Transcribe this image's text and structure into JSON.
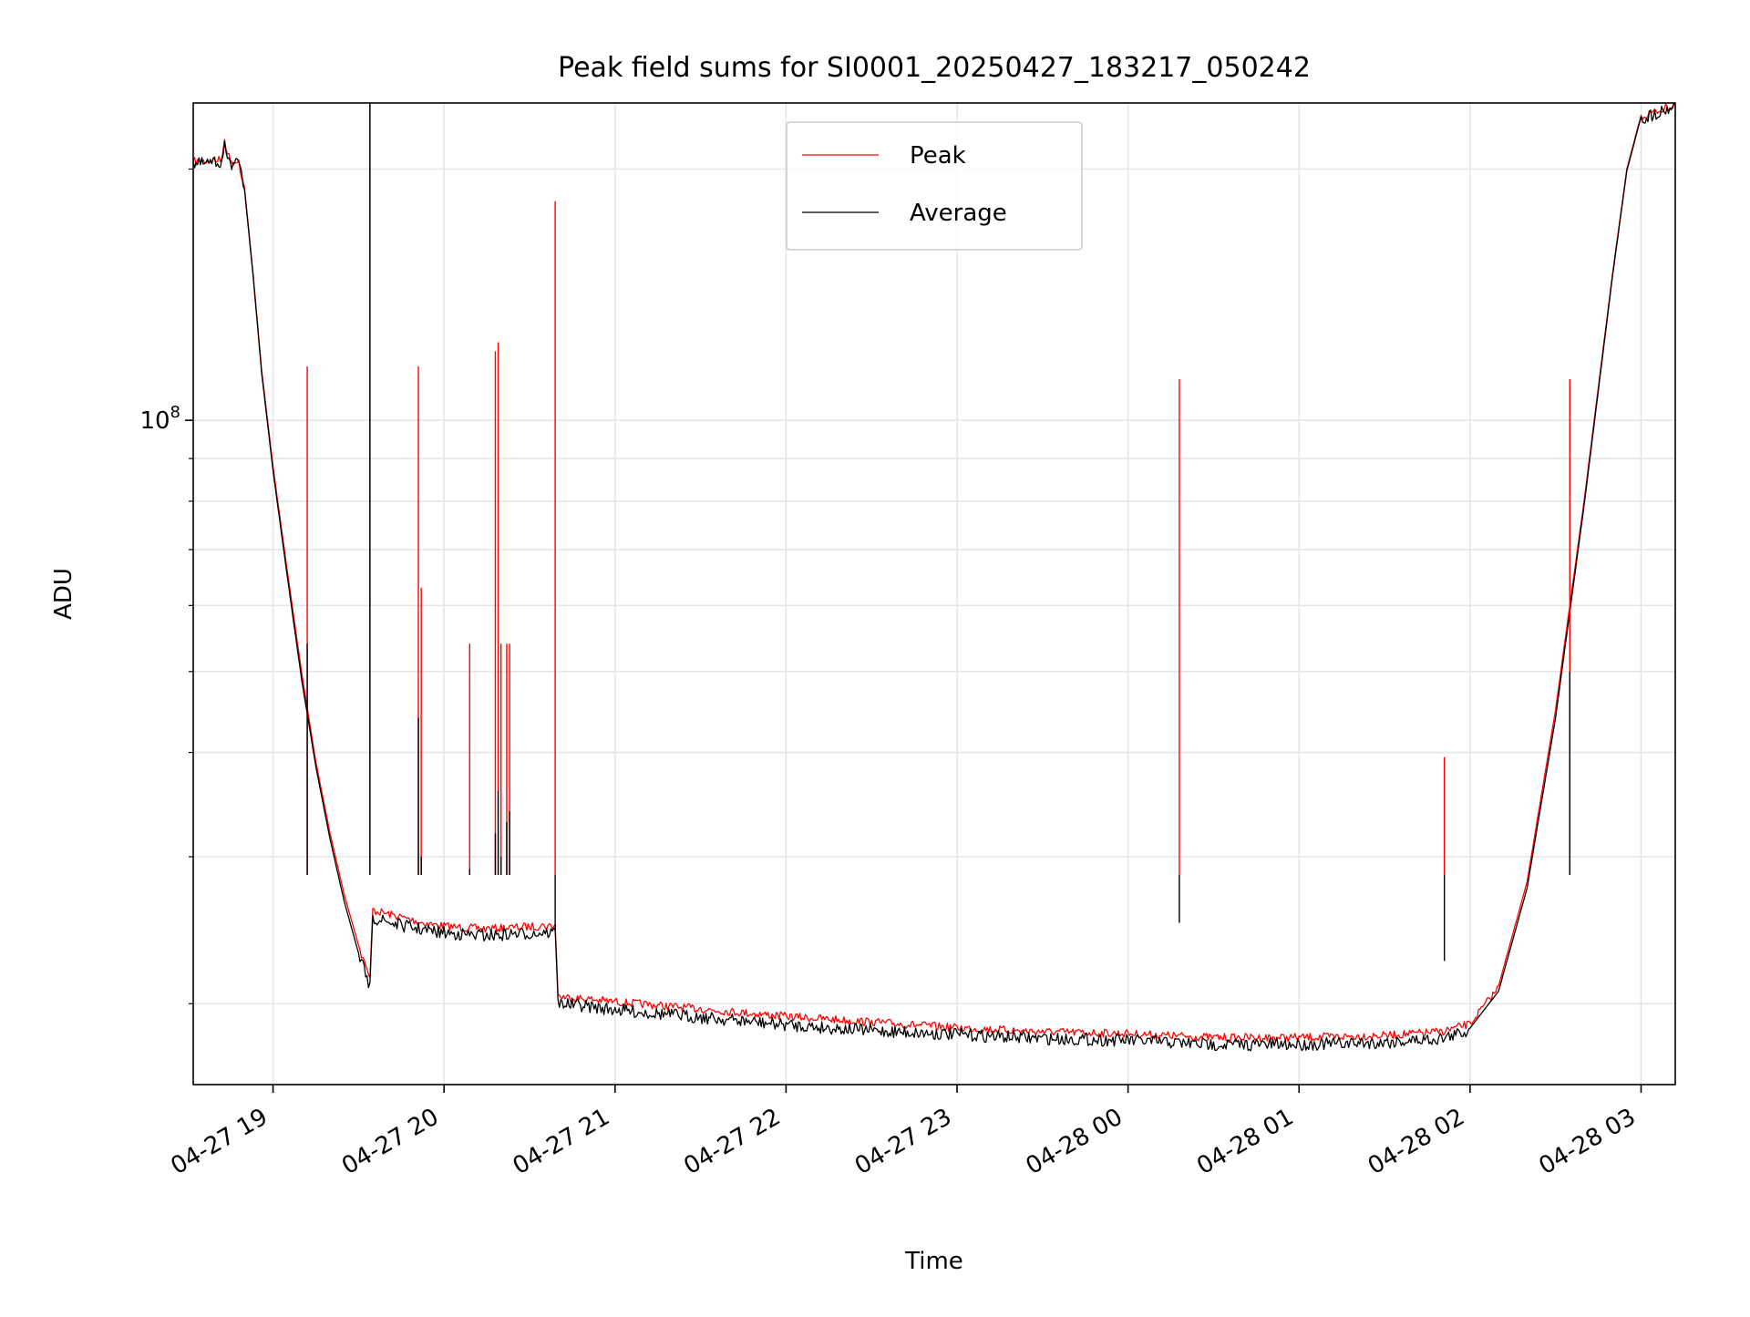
{
  "chart_data": {
    "type": "line",
    "title": "Peak field sums for SI0001_20250427_183217_050242",
    "xlabel": "Time",
    "ylabel": "ADU",
    "y_scale": "log",
    "grid": true,
    "legend_position": "top-center",
    "xlim": [
      "2025-04-27 18:32",
      "2025-04-28 03:12"
    ],
    "ylim": [
      16000000,
      240000000
    ],
    "x_ticks": [
      {
        "value": "2025-04-27 19:00",
        "label": "04-27 19"
      },
      {
        "value": "2025-04-27 20:00",
        "label": "04-27 20"
      },
      {
        "value": "2025-04-27 21:00",
        "label": "04-27 21"
      },
      {
        "value": "2025-04-27 22:00",
        "label": "04-27 22"
      },
      {
        "value": "2025-04-27 23:00",
        "label": "04-27 23"
      },
      {
        "value": "2025-04-28 00:00",
        "label": "04-28 00"
      },
      {
        "value": "2025-04-28 01:00",
        "label": "04-28 01"
      },
      {
        "value": "2025-04-28 02:00",
        "label": "04-28 02"
      },
      {
        "value": "2025-04-28 03:00",
        "label": "04-28 03"
      }
    ],
    "y_major_ticks": [
      {
        "value": 100000000,
        "base": "10",
        "exponent": "8"
      }
    ],
    "y_minor_ticks": [
      20000000,
      30000000,
      40000000,
      50000000,
      60000000,
      70000000,
      80000000,
      90000000,
      200000000
    ],
    "series": [
      {
        "name": "Peak",
        "color": "#ff0000",
        "points": [
          [
            "2025-04-27 18:32",
            205000000
          ],
          [
            "2025-04-27 18:42",
            206000000
          ],
          [
            "2025-04-27 18:43",
            217000000
          ],
          [
            "2025-04-27 18:45",
            205000000
          ],
          [
            "2025-04-27 18:48",
            205000000
          ],
          [
            "2025-04-27 18:50",
            190000000
          ],
          [
            "2025-04-27 18:53",
            150000000
          ],
          [
            "2025-04-27 18:56",
            115000000
          ],
          [
            "2025-04-27 19:00",
            88000000
          ],
          [
            "2025-04-27 19:05",
            66000000
          ],
          [
            "2025-04-27 19:10",
            50000000
          ],
          [
            "2025-04-27 19:15",
            39000000
          ],
          [
            "2025-04-27 19:20",
            32000000
          ],
          [
            "2025-04-27 19:25",
            27000000
          ],
          [
            "2025-04-27 19:30",
            23500000
          ],
          [
            "2025-04-27 19:33",
            22000000
          ],
          [
            "2025-04-27 19:34",
            21500000
          ],
          [
            "2025-04-27 19:35",
            26000000
          ],
          [
            "2025-04-27 19:45",
            25500000
          ],
          [
            "2025-04-27 19:55",
            25000000
          ],
          [
            "2025-04-27 20:05",
            24800000
          ],
          [
            "2025-04-27 20:15",
            24700000
          ],
          [
            "2025-04-27 20:25",
            24800000
          ],
          [
            "2025-04-27 20:35",
            24900000
          ],
          [
            "2025-04-27 20:39",
            24900000
          ],
          [
            "2025-04-27 20:40",
            20500000
          ],
          [
            "2025-04-27 21:00",
            20200000
          ],
          [
            "2025-04-27 21:30",
            19800000
          ],
          [
            "2025-04-27 22:00",
            19400000
          ],
          [
            "2025-04-27 22:30",
            19100000
          ],
          [
            "2025-04-27 23:00",
            18800000
          ],
          [
            "2025-04-27 23:30",
            18600000
          ],
          [
            "2025-04-28 00:00",
            18500000
          ],
          [
            "2025-04-28 00:30",
            18300000
          ],
          [
            "2025-04-28 01:00",
            18300000
          ],
          [
            "2025-04-28 01:30",
            18400000
          ],
          [
            "2025-04-28 01:50",
            18600000
          ],
          [
            "2025-04-28 02:00",
            19000000
          ],
          [
            "2025-04-28 02:10",
            21000000
          ],
          [
            "2025-04-28 02:20",
            28000000
          ],
          [
            "2025-04-28 02:30",
            45000000
          ],
          [
            "2025-04-28 02:40",
            80000000
          ],
          [
            "2025-04-28 02:50",
            150000000
          ],
          [
            "2025-04-28 02:55",
            200000000
          ],
          [
            "2025-04-28 03:00",
            232000000
          ],
          [
            "2025-04-28 03:12",
            240000000
          ]
        ]
      },
      {
        "name": "Average",
        "color": "#000000",
        "points": [
          [
            "2025-04-27 18:32",
            204000000
          ],
          [
            "2025-04-27 18:42",
            205000000
          ],
          [
            "2025-04-27 18:43",
            216000000
          ],
          [
            "2025-04-27 18:45",
            204000000
          ],
          [
            "2025-04-27 18:48",
            204000000
          ],
          [
            "2025-04-27 18:50",
            189000000
          ],
          [
            "2025-04-27 18:53",
            149000000
          ],
          [
            "2025-04-27 18:56",
            114000000
          ],
          [
            "2025-04-27 19:00",
            87000000
          ],
          [
            "2025-04-27 19:05",
            65000000
          ],
          [
            "2025-04-27 19:10",
            49000000
          ],
          [
            "2025-04-27 19:15",
            38500000
          ],
          [
            "2025-04-27 19:20",
            31500000
          ],
          [
            "2025-04-27 19:25",
            26500000
          ],
          [
            "2025-04-27 19:30",
            23000000
          ],
          [
            "2025-04-27 19:33",
            21600000
          ],
          [
            "2025-04-27 19:34",
            21200000
          ],
          [
            "2025-04-27 19:35",
            25500000
          ],
          [
            "2025-04-27 19:45",
            25000000
          ],
          [
            "2025-04-27 19:55",
            24600000
          ],
          [
            "2025-04-27 20:05",
            24400000
          ],
          [
            "2025-04-27 20:15",
            24300000
          ],
          [
            "2025-04-27 20:25",
            24400000
          ],
          [
            "2025-04-27 20:35",
            24500000
          ],
          [
            "2025-04-27 20:39",
            24500000
          ],
          [
            "2025-04-27 20:40",
            20200000
          ],
          [
            "2025-04-27 21:00",
            19800000
          ],
          [
            "2025-04-27 21:30",
            19400000
          ],
          [
            "2025-04-27 22:00",
            19000000
          ],
          [
            "2025-04-27 22:30",
            18700000
          ],
          [
            "2025-04-27 23:00",
            18500000
          ],
          [
            "2025-04-27 23:30",
            18300000
          ],
          [
            "2025-04-28 00:00",
            18200000
          ],
          [
            "2025-04-28 00:30",
            18000000
          ],
          [
            "2025-04-28 01:00",
            18000000
          ],
          [
            "2025-04-28 01:30",
            18100000
          ],
          [
            "2025-04-28 01:50",
            18300000
          ],
          [
            "2025-04-28 02:00",
            18700000
          ],
          [
            "2025-04-28 02:10",
            20700000
          ],
          [
            "2025-04-28 02:20",
            27500000
          ],
          [
            "2025-04-28 02:30",
            44000000
          ],
          [
            "2025-04-28 02:40",
            79000000
          ],
          [
            "2025-04-28 02:50",
            149000000
          ],
          [
            "2025-04-28 02:55",
            199000000
          ],
          [
            "2025-04-28 03:00",
            231000000
          ],
          [
            "2025-04-28 03:12",
            240000000
          ]
        ]
      }
    ],
    "spikes": [
      {
        "time": "2025-04-27 19:12",
        "peak": 116000000,
        "average": 54000000
      },
      {
        "time": "2025-04-27 19:34",
        "peak": 240000000,
        "average": 240000000
      },
      {
        "time": "2025-04-27 19:51",
        "peak": 116000000,
        "average": 44000000
      },
      {
        "time": "2025-04-27 19:52",
        "peak": 63000000,
        "average": 30000000
      },
      {
        "time": "2025-04-27 20:09",
        "peak": 54000000,
        "average": 29000000
      },
      {
        "time": "2025-04-27 20:18",
        "peak": 121000000,
        "average": 32000000
      },
      {
        "time": "2025-04-27 20:19",
        "peak": 124000000,
        "average": 36000000
      },
      {
        "time": "2025-04-27 20:20",
        "peak": 54000000,
        "average": 30000000
      },
      {
        "time": "2025-04-27 20:22",
        "peak": 54000000,
        "average": 33000000
      },
      {
        "time": "2025-04-27 20:23",
        "peak": 54000000,
        "average": 34000000
      },
      {
        "time": "2025-04-27 20:39",
        "peak": 183000000,
        "average": 24500000
      },
      {
        "time": "2025-04-28 00:18",
        "peak": 112000000,
        "average": 25000000
      },
      {
        "time": "2025-04-28 01:51",
        "peak": 39500000,
        "average": 22500000
      },
      {
        "time": "2025-04-28 02:35",
        "peak": 112000000,
        "average": 50000000
      }
    ]
  }
}
